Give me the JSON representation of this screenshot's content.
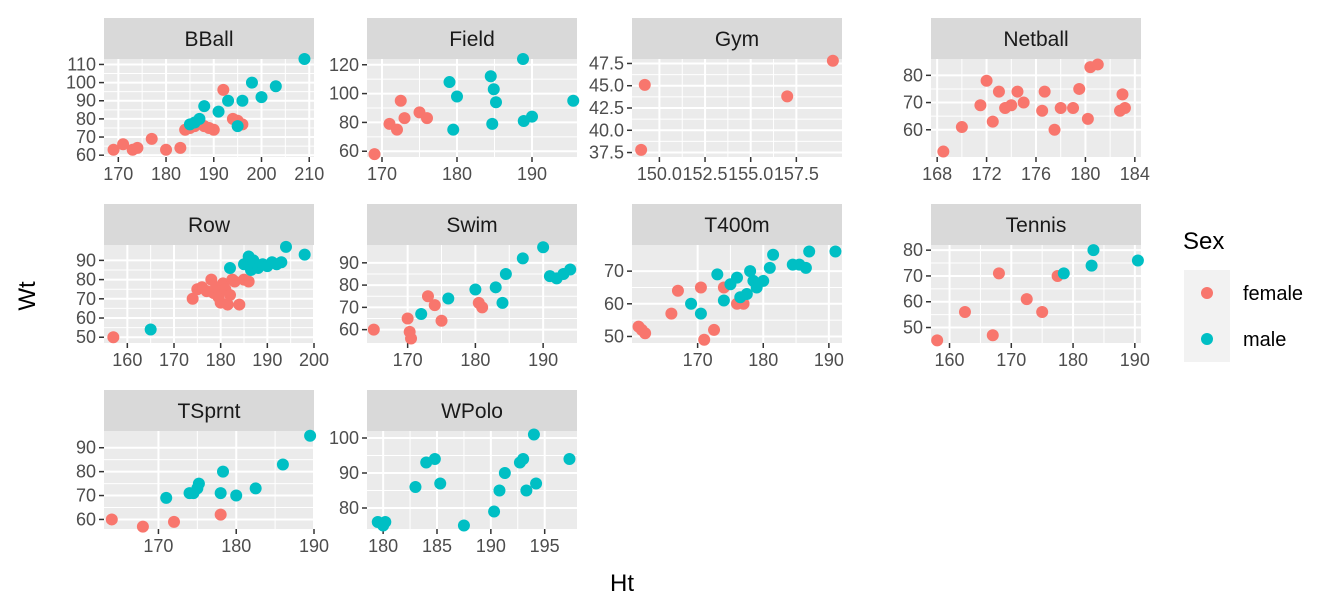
{
  "chart_data": {
    "type": "scatter",
    "xlabel": "Ht",
    "ylabel": "Wt",
    "colors": {
      "female": "#F8766D",
      "male": "#00BFC4",
      "panel_bg": "#EBEBEB",
      "strip_bg": "#D9D9D9"
    },
    "legend": {
      "title": "Sex",
      "position": "right",
      "entries": [
        "female",
        "male"
      ]
    },
    "facets": [
      {
        "name": "BBall",
        "xlim": [
          167,
          211
        ],
        "ylim": [
          59,
          113
        ],
        "xticks": [
          170,
          180,
          190,
          200,
          210
        ],
        "xtick_labels": [
          "170",
          "180",
          "190",
          "200",
          "210"
        ],
        "yticks": [
          60,
          70,
          80,
          90,
          100,
          110
        ],
        "ytick_labels": [
          "60",
          "70",
          "80",
          "90",
          "100",
          "110"
        ],
        "female": [
          [
            169,
            63
          ],
          [
            171,
            66
          ],
          [
            173,
            63
          ],
          [
            174,
            64
          ],
          [
            177,
            69
          ],
          [
            180,
            63
          ],
          [
            183,
            64
          ],
          [
            184,
            74
          ],
          [
            185,
            75
          ],
          [
            186,
            76
          ],
          [
            187,
            78
          ],
          [
            188,
            76
          ],
          [
            189,
            75
          ],
          [
            190,
            74
          ],
          [
            192,
            96
          ],
          [
            194,
            80
          ],
          [
            195,
            79
          ],
          [
            196,
            77
          ]
        ],
        "male": [
          [
            185,
            77
          ],
          [
            186,
            78
          ],
          [
            187,
            80
          ],
          [
            188,
            87
          ],
          [
            191,
            84
          ],
          [
            193,
            90
          ],
          [
            195,
            76
          ],
          [
            196,
            90
          ],
          [
            198,
            100
          ],
          [
            200,
            92
          ],
          [
            203,
            98
          ],
          [
            209,
            113
          ]
        ]
      },
      {
        "name": "Field",
        "xlim": [
          168,
          196
        ],
        "ylim": [
          56,
          124
        ],
        "xticks": [
          170,
          180,
          190
        ],
        "xtick_labels": [
          "170",
          "180",
          "190"
        ],
        "yticks": [
          60,
          80,
          100,
          120
        ],
        "ytick_labels": [
          "60",
          "80",
          "100",
          "120"
        ],
        "female": [
          [
            169,
            58
          ],
          [
            171,
            79
          ],
          [
            172,
            75
          ],
          [
            172.5,
            95
          ],
          [
            173,
            83
          ],
          [
            175,
            87
          ],
          [
            176,
            83
          ]
        ],
        "male": [
          [
            179,
            108
          ],
          [
            179.5,
            75
          ],
          [
            180,
            98
          ],
          [
            184.5,
            112
          ],
          [
            184.7,
            79
          ],
          [
            184.9,
            103
          ],
          [
            185.2,
            94
          ],
          [
            188.8,
            124
          ],
          [
            188.9,
            81
          ],
          [
            190,
            84
          ],
          [
            195.5,
            95
          ]
        ]
      },
      {
        "name": "Gym",
        "xlim": [
          148.5,
          160
        ],
        "ylim": [
          37,
          48
        ],
        "xticks": [
          150,
          152.5,
          155,
          157.5
        ],
        "xtick_labels": [
          "150.0",
          "152.5",
          "155.0",
          "157.5"
        ],
        "yticks": [
          37.5,
          40,
          42.5,
          45,
          47.5
        ],
        "ytick_labels": [
          "37.5",
          "40.0",
          "42.5",
          "45.0",
          "47.5"
        ],
        "female": [
          [
            149,
            37.8
          ],
          [
            149.2,
            45.1
          ],
          [
            157,
            43.8
          ],
          [
            159.5,
            47.8
          ]
        ],
        "male": []
      },
      {
        "name": "Netball",
        "xlim": [
          167.5,
          184.5
        ],
        "ylim": [
          50,
          86
        ],
        "xticks": [
          168,
          172,
          176,
          180,
          184
        ],
        "xtick_labels": [
          "168",
          "172",
          "176",
          "180",
          "184"
        ],
        "yticks": [
          60,
          70,
          80
        ],
        "ytick_labels": [
          "60",
          "70",
          "80"
        ],
        "female": [
          [
            168.5,
            52
          ],
          [
            170,
            61
          ],
          [
            171.5,
            69
          ],
          [
            172,
            78
          ],
          [
            172.5,
            63
          ],
          [
            173,
            74
          ],
          [
            173.5,
            68
          ],
          [
            174,
            69
          ],
          [
            174.5,
            74
          ],
          [
            175,
            70
          ],
          [
            176.5,
            67
          ],
          [
            176.7,
            74
          ],
          [
            177.5,
            60
          ],
          [
            178,
            68
          ],
          [
            179,
            68
          ],
          [
            179.5,
            75
          ],
          [
            180.2,
            64
          ],
          [
            180.4,
            83
          ],
          [
            181,
            84
          ],
          [
            182.8,
            67
          ],
          [
            183,
            73
          ],
          [
            183.2,
            68
          ]
        ]
      },
      {
        "name": "Row",
        "xlim": [
          155,
          200
        ],
        "ylim": [
          47,
          98
        ],
        "xticks": [
          160,
          170,
          180,
          190,
          200
        ],
        "xtick_labels": [
          "160",
          "170",
          "180",
          "190",
          "200"
        ],
        "yticks": [
          50,
          60,
          70,
          80,
          90
        ],
        "ytick_labels": [
          "50",
          "60",
          "70",
          "80",
          "90"
        ],
        "female": [
          [
            157,
            50
          ],
          [
            174,
            70
          ],
          [
            175,
            75
          ],
          [
            176,
            76
          ],
          [
            177,
            74
          ],
          [
            178,
            80
          ],
          [
            178.5,
            73
          ],
          [
            179,
            76
          ],
          [
            179.5,
            71
          ],
          [
            180,
            68
          ],
          [
            180.5,
            78
          ],
          [
            181,
            75
          ],
          [
            181.5,
            67
          ],
          [
            182,
            72
          ],
          [
            182.5,
            80
          ],
          [
            183,
            79
          ],
          [
            184,
            67
          ],
          [
            185,
            80
          ],
          [
            186,
            79
          ]
        ],
        "male": [
          [
            165,
            54
          ],
          [
            182,
            86
          ],
          [
            185,
            88
          ],
          [
            186,
            92
          ],
          [
            186.5,
            85
          ],
          [
            187,
            90
          ],
          [
            188,
            86
          ],
          [
            189,
            88
          ],
          [
            190,
            87
          ],
          [
            191,
            89
          ],
          [
            192,
            88
          ],
          [
            193,
            89
          ],
          [
            194,
            97
          ],
          [
            198,
            93
          ]
        ]
      },
      {
        "name": "Swim",
        "xlim": [
          164,
          195
        ],
        "ylim": [
          54,
          98
        ],
        "xticks": [
          170,
          180,
          190
        ],
        "xtick_labels": [
          "170",
          "180",
          "190"
        ],
        "yticks": [
          60,
          70,
          80,
          90
        ],
        "ytick_labels": [
          "60",
          "70",
          "80",
          "90"
        ],
        "female": [
          [
            165,
            60
          ],
          [
            170,
            65
          ],
          [
            170.3,
            59
          ],
          [
            170.5,
            56
          ],
          [
            173,
            75
          ],
          [
            174,
            71
          ],
          [
            175,
            64
          ],
          [
            180.5,
            72
          ],
          [
            181,
            70
          ]
        ],
        "male": [
          [
            172,
            67
          ],
          [
            176,
            74
          ],
          [
            180,
            78
          ],
          [
            183,
            79
          ],
          [
            184,
            72
          ],
          [
            184.5,
            85
          ],
          [
            187,
            92
          ],
          [
            190,
            97
          ],
          [
            191,
            84
          ],
          [
            192,
            83
          ],
          [
            193,
            85
          ],
          [
            194,
            87
          ]
        ]
      },
      {
        "name": "T400m",
        "xlim": [
          160,
          192
        ],
        "ylim": [
          48,
          78
        ],
        "xticks": [
          170,
          180,
          190
        ],
        "xtick_labels": [
          "170",
          "180",
          "190"
        ],
        "yticks": [
          50,
          60,
          70
        ],
        "ytick_labels": [
          "50",
          "60",
          "70"
        ],
        "female": [
          [
            161,
            53
          ],
          [
            161.5,
            52
          ],
          [
            162,
            51
          ],
          [
            166,
            57
          ],
          [
            167,
            64
          ],
          [
            170.5,
            65
          ],
          [
            171,
            49
          ],
          [
            172.5,
            52
          ],
          [
            174,
            65
          ],
          [
            176,
            60
          ],
          [
            177,
            60
          ]
        ],
        "male": [
          [
            169,
            60
          ],
          [
            170.5,
            57
          ],
          [
            173,
            69
          ],
          [
            174,
            61
          ],
          [
            175,
            66
          ],
          [
            176,
            68
          ],
          [
            176.5,
            62
          ],
          [
            177.5,
            63
          ],
          [
            178,
            70
          ],
          [
            178.5,
            67
          ],
          [
            179,
            65
          ],
          [
            180,
            67
          ],
          [
            181,
            71
          ],
          [
            181.5,
            75
          ],
          [
            184.5,
            72
          ],
          [
            185.5,
            72
          ],
          [
            186.5,
            71
          ],
          [
            187,
            76
          ],
          [
            191,
            76
          ]
        ]
      },
      {
        "name": "Tennis",
        "xlim": [
          157,
          191
        ],
        "ylim": [
          44,
          82
        ],
        "xticks": [
          160,
          170,
          180,
          190
        ],
        "xtick_labels": [
          "160",
          "170",
          "180",
          "190"
        ],
        "yticks": [
          50,
          60,
          70,
          80
        ],
        "ytick_labels": [
          "50",
          "60",
          "70",
          "80"
        ],
        "female": [
          [
            158,
            45
          ],
          [
            162.5,
            56
          ],
          [
            167,
            47
          ],
          [
            168,
            71
          ],
          [
            172.5,
            61
          ],
          [
            175,
            56
          ],
          [
            177.5,
            70
          ]
        ],
        "male": [
          [
            178.5,
            71
          ],
          [
            183,
            74
          ],
          [
            183.3,
            80
          ],
          [
            190.5,
            76
          ]
        ]
      },
      {
        "name": "TSprnt",
        "xlim": [
          163,
          190
        ],
        "ylim": [
          56,
          97
        ],
        "xticks": [
          170,
          180,
          190
        ],
        "xtick_labels": [
          "170",
          "180",
          "190"
        ],
        "yticks": [
          60,
          70,
          80,
          90
        ],
        "ytick_labels": [
          "60",
          "70",
          "80",
          "90"
        ],
        "female": [
          [
            164,
            60
          ],
          [
            168,
            57
          ],
          [
            172,
            59
          ],
          [
            178,
            62
          ]
        ],
        "male": [
          [
            171,
            69
          ],
          [
            174,
            71
          ],
          [
            174.5,
            71
          ],
          [
            175,
            73
          ],
          [
            175.2,
            75
          ],
          [
            178,
            71
          ],
          [
            178.3,
            80
          ],
          [
            180,
            70
          ],
          [
            182.5,
            73
          ],
          [
            186,
            83
          ],
          [
            189.5,
            95
          ]
        ]
      },
      {
        "name": "WPolo",
        "xlim": [
          178.5,
          198
        ],
        "ylim": [
          74,
          102
        ],
        "xticks": [
          180,
          185,
          190,
          195
        ],
        "xtick_labels": [
          "180",
          "185",
          "190",
          "195"
        ],
        "yticks": [
          80,
          90,
          100
        ],
        "ytick_labels": [
          "80",
          "90",
          "100"
        ],
        "male": [
          [
            179.5,
            76
          ],
          [
            180,
            75
          ],
          [
            180.2,
            76
          ],
          [
            183,
            86
          ],
          [
            184,
            93
          ],
          [
            184.8,
            94
          ],
          [
            185.3,
            87
          ],
          [
            187.5,
            75
          ],
          [
            190.3,
            79
          ],
          [
            190.8,
            85
          ],
          [
            191.3,
            90
          ],
          [
            192.7,
            93
          ],
          [
            193,
            94
          ],
          [
            193.3,
            85
          ],
          [
            194,
            101
          ],
          [
            194.2,
            87
          ],
          [
            197.3,
            94
          ]
        ]
      }
    ]
  }
}
